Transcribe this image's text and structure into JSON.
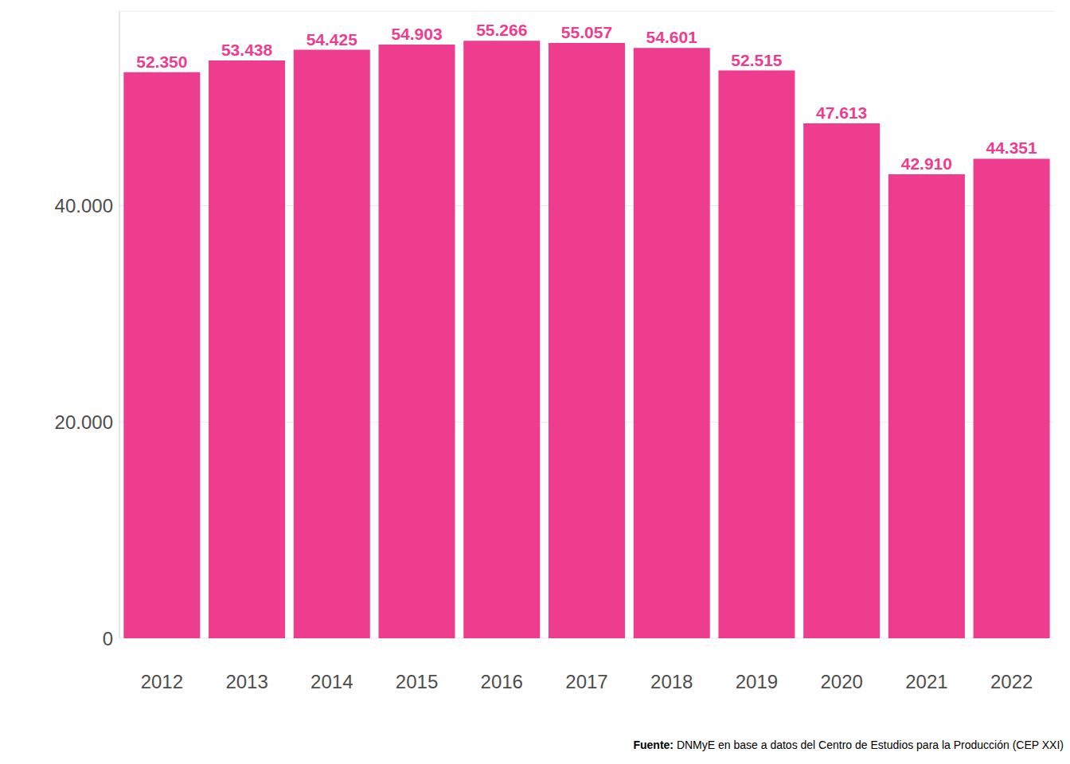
{
  "chart_data": {
    "type": "bar",
    "categories": [
      "2012",
      "2013",
      "2014",
      "2015",
      "2016",
      "2017",
      "2018",
      "2019",
      "2020",
      "2021",
      "2022"
    ],
    "values": [
      52350,
      53438,
      54425,
      54903,
      55266,
      55057,
      54601,
      52515,
      47613,
      42910,
      44351
    ],
    "value_labels": [
      "52.350",
      "53.438",
      "54.425",
      "54.903",
      "55.266",
      "55.057",
      "54.601",
      "52.515",
      "47.613",
      "42.910",
      "44.351"
    ],
    "data_labels": true,
    "color": "#ee3d8f",
    "ylim": [
      0,
      58000
    ],
    "yticks": [
      0,
      {
        "value": 20000,
        "label": "20.000"
      },
      {
        "value": 40000,
        "label": "40.000"
      }
    ],
    "grid": true,
    "source": {
      "label": "Fuente:",
      "text": "DNMyE en base a datos del Centro de Estudios para la Producción (CEP XXI)"
    }
  }
}
